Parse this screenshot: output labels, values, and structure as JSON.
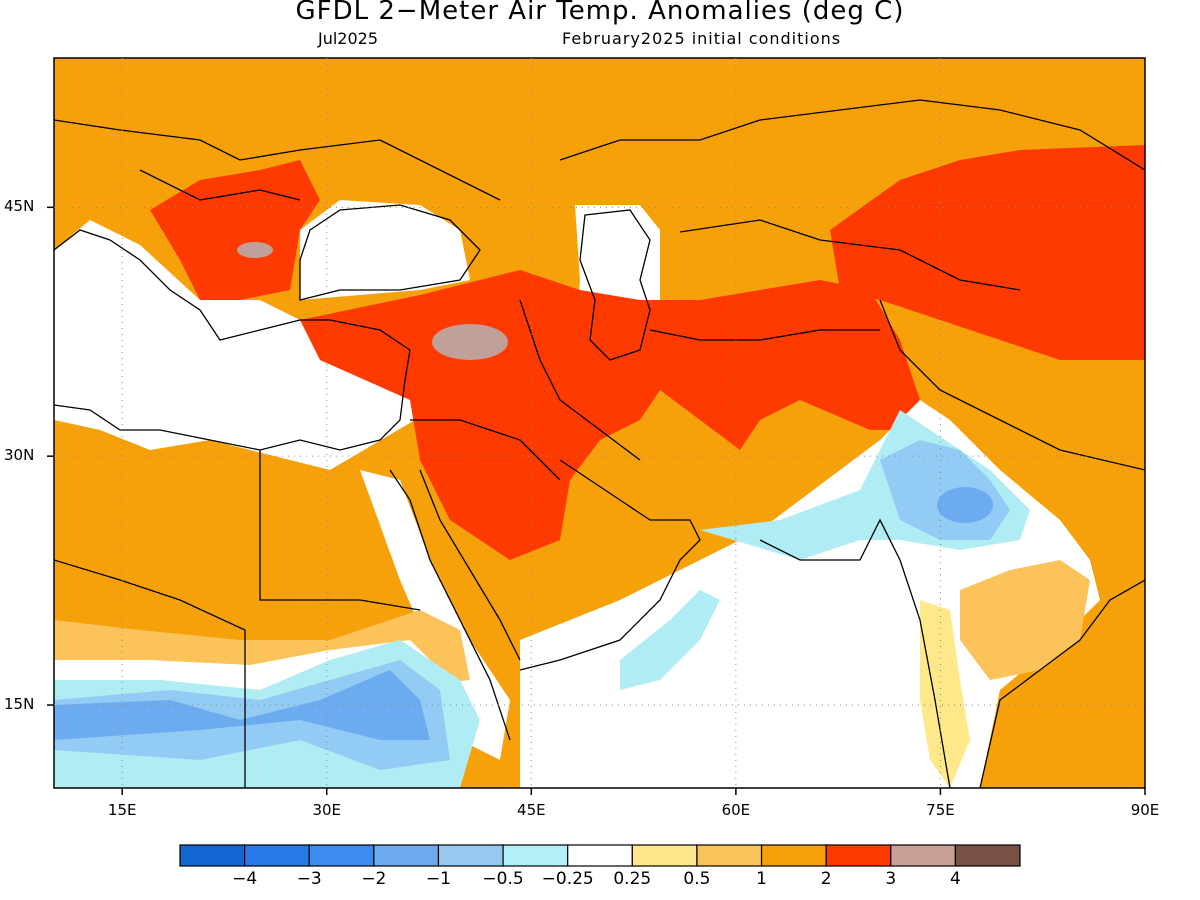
{
  "title": "GFDL 2−Meter Air Temp. Anomalies (deg C)",
  "valid_month": "Jul2025",
  "init": "February2025 initial conditions",
  "map": {
    "lon_labels": [
      "15E",
      "30E",
      "45E",
      "60E",
      "75E",
      "90E"
    ],
    "lat_labels": [
      "45N",
      "30N",
      "15N"
    ],
    "lon_range": [
      10,
      90
    ],
    "lat_range": [
      10,
      54
    ],
    "colors": {
      "plus_05_1": "#fbc35a",
      "plus_1_2": "#f7a10a",
      "plus_2_3": "#ff3a00",
      "plus_3_4": "#c0a098",
      "minus_025_05": "#b0ecf4",
      "minus_05_1": "#92cbf4",
      "minus_1_2": "#6cabf0",
      "plus_025_05": "#ffe88a"
    }
  },
  "colorbar": {
    "colors": [
      "#1464d2",
      "#2878e6",
      "#3c8cf0",
      "#6eaaf0",
      "#96c8f0",
      "#b4f0fa",
      "#ffffff",
      "#ffe68c",
      "#fac35a",
      "#f5a00a",
      "#ff3c00",
      "#c8a096",
      "#785046"
    ],
    "labels": [
      "−4",
      "−3",
      "−2",
      "−1",
      "−0.5",
      "−0.25",
      "0.25",
      "0.5",
      "1",
      "2",
      "3",
      "4"
    ]
  }
}
